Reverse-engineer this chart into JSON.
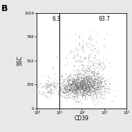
{
  "title": "",
  "xlabel": "CD39",
  "ylabel": "SSC",
  "panel_label": "B",
  "xlim": [
    1,
    10000
  ],
  "ylim": [
    0,
    1024
  ],
  "yticks": [
    0,
    256,
    512,
    768,
    1024
  ],
  "ytick_labels": [
    "0",
    "256",
    "512",
    "768",
    "1024"
  ],
  "xtick_positions": [
    1,
    10,
    100,
    1000,
    10000
  ],
  "xtick_labels": [
    "10⁰",
    "10¹",
    "10²",
    "10³",
    "10⁴"
  ],
  "gate_x_log": 1.0,
  "left_pct": "6.3",
  "right_pct": "93.7",
  "background_color": "#e8e8e8",
  "plot_bg": "#ffffff",
  "dot_color": "#606060",
  "dot_alpha": 0.5,
  "dot_size": 0.8,
  "seed": 42,
  "cluster1": {
    "x_log_mean": 0.55,
    "x_log_std": 0.25,
    "y_mean": 220,
    "y_std": 55,
    "n": 120
  },
  "cluster2_main": {
    "x_log_mean": 2.05,
    "x_log_std": 0.45,
    "y_mean": 240,
    "y_std": 65,
    "n": 1100
  },
  "cluster2_tail": {
    "x_log_mean": 1.5,
    "x_log_std": 0.35,
    "y_mean": 225,
    "y_std": 55,
    "n": 300
  },
  "cluster3": {
    "x_log_mean": 2.2,
    "x_log_std": 0.45,
    "y_mean": 480,
    "y_std": 140,
    "n": 280
  },
  "cluster4": {
    "x_log_mean": 2.6,
    "x_log_std": 0.3,
    "y_mean": 280,
    "y_std": 90,
    "n": 200
  }
}
